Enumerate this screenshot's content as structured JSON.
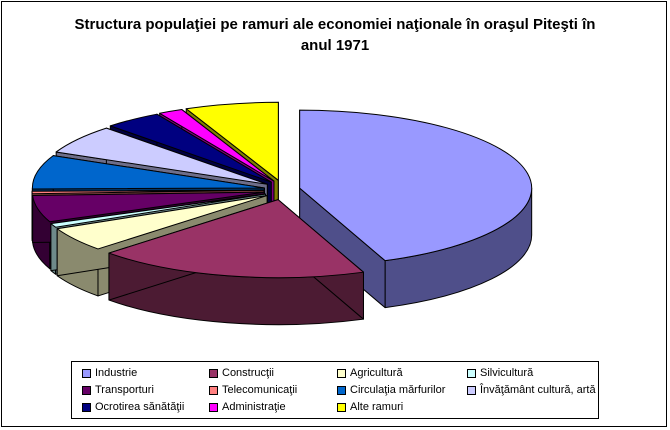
{
  "chart_data": {
    "type": "pie",
    "style": "3d-exploded",
    "title_lines": [
      "Structura populaţiei pe ramuri ale economiei naţionale în oraşul Piteşti în",
      "anul 1971"
    ],
    "legend_placement": "bottom",
    "unit": "%",
    "slices": [
      {
        "name": "Industrie",
        "value": 44.0,
        "color": "#9999ff",
        "side_color": "#4f4f8a"
      },
      {
        "name": "Construcţii",
        "value": 19.0,
        "color": "#993366",
        "side_color": "#4c1b33"
      },
      {
        "name": "Agricultură",
        "value": 5.0,
        "color": "#ffffcc",
        "side_color": "#8a8a6e"
      },
      {
        "name": "Silvicultură",
        "value": 0.8,
        "color": "#ccffff",
        "side_color": "#6e8a8a"
      },
      {
        "name": "Transporturi",
        "value": 5.5,
        "color": "#660066",
        "side_color": "#330033"
      },
      {
        "name": "Telecomunicaţii",
        "value": 0.5,
        "color": "#ff8080",
        "side_color": "#8a4545"
      },
      {
        "name": "Circulaţia mărfurilor",
        "value": 7.0,
        "color": "#0066cc",
        "side_color": "#003366"
      },
      {
        "name": "Învăţământ cultură, artă",
        "value": 6.0,
        "color": "#ccccff",
        "side_color": "#6e6e8a"
      },
      {
        "name": "Ocrotirea sănătăţii",
        "value": 4.0,
        "color": "#000080",
        "side_color": "#000040"
      },
      {
        "name": "Administraţie",
        "value": 1.7,
        "color": "#ff00ff",
        "side_color": "#800080"
      },
      {
        "name": "Alte ramuri",
        "value": 6.5,
        "color": "#ffff00",
        "side_color": "#808000"
      }
    ]
  }
}
